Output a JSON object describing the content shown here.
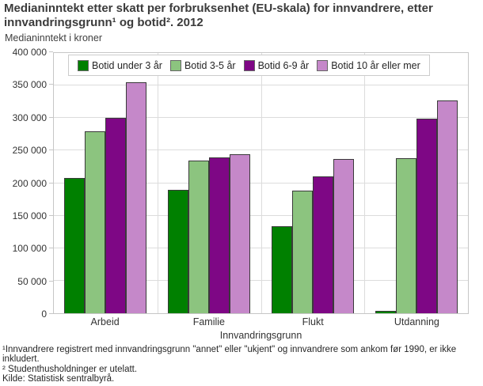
{
  "title": "Medianinntekt etter skatt per forbruksenhet (EU-skala) for innvandrere, etter innvandringsgrunn¹ og botid². 2012",
  "subtitle": "Medianinntekt i kroner",
  "footnote1": "¹Innvandrere registrert med innvandringsgrunn \"annet\" eller \"ukjent\" og innvandrere som ankom før 1990, er ikke inkludert.",
  "footnote2": "² Studenthusholdninger er utelatt.",
  "source": "Kilde: Statistisk sentralbyrå.",
  "chart_data": {
    "type": "bar",
    "title": "Medianinntekt etter skatt per forbruksenhet (EU-skala) for innvandrere, etter innvandringsgrunn¹ og botid². 2012",
    "ylabel": "Medianinntekt i kroner",
    "xlabel": "Innvandringsgrunn",
    "categories": [
      "Arbeid",
      "Familie",
      "Flukt",
      "Utdanning"
    ],
    "series": [
      {
        "name": "Botid under 3 år",
        "color": "#008000",
        "values": [
          208000,
          190000,
          134000,
          4000
        ]
      },
      {
        "name": "Botid 3-5 år",
        "color": "#8CC47F",
        "values": [
          280000,
          235000,
          189000,
          238000
        ]
      },
      {
        "name": "Botid 6-9 år",
        "color": "#7E0785",
        "values": [
          300000,
          239000,
          210000,
          299000
        ]
      },
      {
        "name": "Botid 10 år eller mer",
        "color": "#C588C9",
        "values": [
          355000,
          245000,
          237000,
          327000
        ]
      }
    ],
    "ylim": [
      0,
      400000
    ],
    "ytick_step": 50000,
    "yticks": [
      "0",
      "50 000",
      "100 000",
      "150 000",
      "200 000",
      "250 000",
      "300 000",
      "350 000",
      "400 000"
    ],
    "grid": true,
    "legend_position": "top",
    "bar_edge_color": "#3a3a3a"
  }
}
